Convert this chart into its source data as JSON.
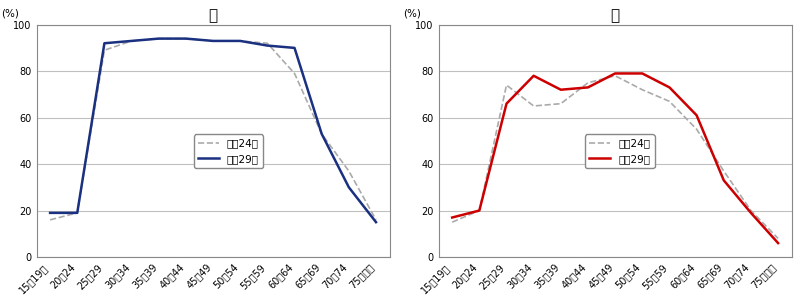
{
  "categories": [
    "15～19歳",
    "20～24",
    "25～29",
    "30～34",
    "35～39",
    "40～44",
    "45～49",
    "50～54",
    "55～59",
    "60～64",
    "65～69",
    "70～74",
    "75歳以上"
  ],
  "male_h24": [
    16,
    19,
    89,
    93,
    94,
    94,
    93,
    93,
    92,
    79,
    53,
    37,
    16
  ],
  "male_h29": [
    19,
    19,
    92,
    93,
    94,
    94,
    93,
    93,
    91,
    90,
    53,
    30,
    15
  ],
  "female_h24": [
    15,
    20,
    74,
    65,
    66,
    75,
    78,
    72,
    67,
    55,
    37,
    20,
    8
  ],
  "female_h29": [
    17,
    20,
    66,
    78,
    72,
    73,
    79,
    79,
    73,
    61,
    33,
    19,
    6
  ],
  "title_male": "男",
  "title_female": "女",
  "label_h24": "平成24年",
  "label_h29": "平成29年",
  "ylabel": "(%)",
  "ylim": [
    0,
    100
  ],
  "yticks": [
    0,
    20,
    40,
    60,
    80,
    100
  ],
  "male_h24_color": "#aaaaaa",
  "male_h29_color": "#1a3080",
  "female_h24_color": "#aaaaaa",
  "female_h29_color": "#cc0000",
  "bg_color": "#ffffff",
  "grid_color": "#c0c0c0"
}
